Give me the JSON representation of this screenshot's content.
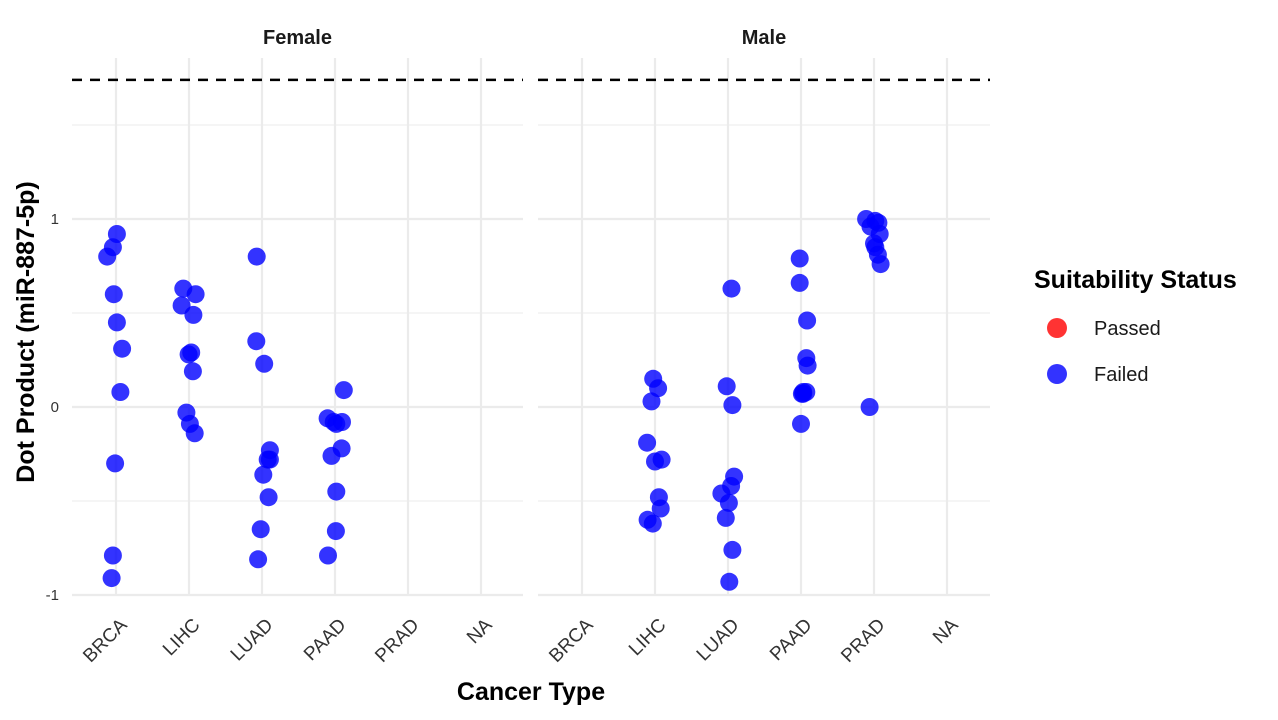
{
  "chart_data": {
    "type": "scatter",
    "title": "",
    "xlabel": "Cancer Type",
    "ylabel": "Dot Product (miR-887-5p)",
    "ylim": [
      -1.05,
      1.75
    ],
    "yticks": [
      -1,
      0,
      1
    ],
    "ytick_labels": [
      "-1",
      "0",
      "1"
    ],
    "reference_line_y": 1.74,
    "grid": true,
    "categories": [
      "BRCA",
      "LIHC",
      "LUAD",
      "PAAD",
      "PRAD",
      "NA"
    ],
    "legend": {
      "title": "Suitability Status",
      "position": "right",
      "entries": [
        {
          "label": "Passed",
          "color": "#ff0000"
        },
        {
          "label": "Failed",
          "color": "#0000ff"
        }
      ]
    },
    "facets": [
      {
        "name": "Female",
        "points": [
          {
            "cat": "BRCA",
            "jitter": -0.2,
            "y": 0.8,
            "status": "Failed"
          },
          {
            "cat": "BRCA",
            "jitter": -0.07,
            "y": 0.85,
            "status": "Failed"
          },
          {
            "cat": "BRCA",
            "jitter": 0.02,
            "y": 0.92,
            "status": "Failed"
          },
          {
            "cat": "BRCA",
            "jitter": -0.05,
            "y": 0.6,
            "status": "Failed"
          },
          {
            "cat": "BRCA",
            "jitter": 0.02,
            "y": 0.45,
            "status": "Failed"
          },
          {
            "cat": "BRCA",
            "jitter": 0.14,
            "y": 0.31,
            "status": "Failed"
          },
          {
            "cat": "BRCA",
            "jitter": 0.1,
            "y": 0.08,
            "status": "Failed"
          },
          {
            "cat": "BRCA",
            "jitter": -0.02,
            "y": -0.3,
            "status": "Failed"
          },
          {
            "cat": "BRCA",
            "jitter": -0.07,
            "y": -0.79,
            "status": "Failed"
          },
          {
            "cat": "BRCA",
            "jitter": -0.1,
            "y": -0.91,
            "status": "Failed"
          },
          {
            "cat": "LIHC",
            "jitter": -0.13,
            "y": 0.63,
            "status": "Failed"
          },
          {
            "cat": "LIHC",
            "jitter": 0.15,
            "y": 0.6,
            "status": "Failed"
          },
          {
            "cat": "LIHC",
            "jitter": -0.17,
            "y": 0.54,
            "status": "Failed"
          },
          {
            "cat": "LIHC",
            "jitter": 0.1,
            "y": 0.49,
            "status": "Failed"
          },
          {
            "cat": "LIHC",
            "jitter": 0.05,
            "y": 0.29,
            "status": "Failed"
          },
          {
            "cat": "LIHC",
            "jitter": -0.01,
            "y": 0.28,
            "status": "Failed"
          },
          {
            "cat": "LIHC",
            "jitter": 0.09,
            "y": 0.19,
            "status": "Failed"
          },
          {
            "cat": "LIHC",
            "jitter": -0.06,
            "y": -0.03,
            "status": "Failed"
          },
          {
            "cat": "LIHC",
            "jitter": 0.02,
            "y": -0.09,
            "status": "Failed"
          },
          {
            "cat": "LIHC",
            "jitter": 0.13,
            "y": -0.14,
            "status": "Failed"
          },
          {
            "cat": "LUAD",
            "jitter": -0.12,
            "y": 0.8,
            "status": "Failed"
          },
          {
            "cat": "LUAD",
            "jitter": -0.13,
            "y": 0.35,
            "status": "Failed"
          },
          {
            "cat": "LUAD",
            "jitter": 0.05,
            "y": 0.23,
            "status": "Failed"
          },
          {
            "cat": "LUAD",
            "jitter": 0.18,
            "y": -0.23,
            "status": "Failed"
          },
          {
            "cat": "LUAD",
            "jitter": 0.13,
            "y": -0.28,
            "status": "Failed"
          },
          {
            "cat": "LUAD",
            "jitter": 0.18,
            "y": -0.28,
            "status": "Failed"
          },
          {
            "cat": "LUAD",
            "jitter": 0.03,
            "y": -0.36,
            "status": "Failed"
          },
          {
            "cat": "LUAD",
            "jitter": 0.15,
            "y": -0.48,
            "status": "Failed"
          },
          {
            "cat": "LUAD",
            "jitter": -0.03,
            "y": -0.65,
            "status": "Failed"
          },
          {
            "cat": "LUAD",
            "jitter": -0.09,
            "y": -0.81,
            "status": "Failed"
          },
          {
            "cat": "PAAD",
            "jitter": 0.2,
            "y": 0.09,
            "status": "Failed"
          },
          {
            "cat": "PAAD",
            "jitter": -0.17,
            "y": -0.06,
            "status": "Failed"
          },
          {
            "cat": "PAAD",
            "jitter": -0.03,
            "y": -0.08,
            "status": "Failed"
          },
          {
            "cat": "PAAD",
            "jitter": 0.03,
            "y": -0.09,
            "status": "Failed"
          },
          {
            "cat": "PAAD",
            "jitter": 0.16,
            "y": -0.08,
            "status": "Failed"
          },
          {
            "cat": "PAAD",
            "jitter": 0.15,
            "y": -0.22,
            "status": "Failed"
          },
          {
            "cat": "PAAD",
            "jitter": -0.08,
            "y": -0.26,
            "status": "Failed"
          },
          {
            "cat": "PAAD",
            "jitter": 0.03,
            "y": -0.45,
            "status": "Failed"
          },
          {
            "cat": "PAAD",
            "jitter": 0.02,
            "y": -0.66,
            "status": "Failed"
          },
          {
            "cat": "PAAD",
            "jitter": -0.16,
            "y": -0.79,
            "status": "Failed"
          }
        ]
      },
      {
        "name": "Male",
        "points": [
          {
            "cat": "LIHC",
            "jitter": -0.04,
            "y": 0.15,
            "status": "Failed"
          },
          {
            "cat": "LIHC",
            "jitter": 0.07,
            "y": 0.1,
            "status": "Failed"
          },
          {
            "cat": "LIHC",
            "jitter": -0.08,
            "y": 0.03,
            "status": "Failed"
          },
          {
            "cat": "LIHC",
            "jitter": -0.18,
            "y": -0.19,
            "status": "Failed"
          },
          {
            "cat": "LIHC",
            "jitter": 0.15,
            "y": -0.28,
            "status": "Failed"
          },
          {
            "cat": "LIHC",
            "jitter": 0.0,
            "y": -0.29,
            "status": "Failed"
          },
          {
            "cat": "LIHC",
            "jitter": 0.09,
            "y": -0.48,
            "status": "Failed"
          },
          {
            "cat": "LIHC",
            "jitter": 0.13,
            "y": -0.54,
            "status": "Failed"
          },
          {
            "cat": "LIHC",
            "jitter": -0.17,
            "y": -0.6,
            "status": "Failed"
          },
          {
            "cat": "LIHC",
            "jitter": -0.05,
            "y": -0.62,
            "status": "Failed"
          },
          {
            "cat": "LUAD",
            "jitter": 0.08,
            "y": 0.63,
            "status": "Failed"
          },
          {
            "cat": "LUAD",
            "jitter": -0.03,
            "y": 0.11,
            "status": "Failed"
          },
          {
            "cat": "LUAD",
            "jitter": 0.1,
            "y": 0.01,
            "status": "Failed"
          },
          {
            "cat": "LUAD",
            "jitter": 0.14,
            "y": -0.37,
            "status": "Failed"
          },
          {
            "cat": "LUAD",
            "jitter": 0.07,
            "y": -0.42,
            "status": "Failed"
          },
          {
            "cat": "LUAD",
            "jitter": -0.15,
            "y": -0.46,
            "status": "Failed"
          },
          {
            "cat": "LUAD",
            "jitter": 0.02,
            "y": -0.51,
            "status": "Failed"
          },
          {
            "cat": "LUAD",
            "jitter": -0.05,
            "y": -0.59,
            "status": "Failed"
          },
          {
            "cat": "LUAD",
            "jitter": 0.1,
            "y": -0.76,
            "status": "Failed"
          },
          {
            "cat": "LUAD",
            "jitter": 0.03,
            "y": -0.93,
            "status": "Failed"
          },
          {
            "cat": "PAAD",
            "jitter": -0.03,
            "y": 0.79,
            "status": "Failed"
          },
          {
            "cat": "PAAD",
            "jitter": -0.03,
            "y": 0.66,
            "status": "Failed"
          },
          {
            "cat": "PAAD",
            "jitter": 0.14,
            "y": 0.46,
            "status": "Failed"
          },
          {
            "cat": "PAAD",
            "jitter": 0.12,
            "y": 0.26,
            "status": "Failed"
          },
          {
            "cat": "PAAD",
            "jitter": 0.15,
            "y": 0.22,
            "status": "Failed"
          },
          {
            "cat": "PAAD",
            "jitter": 0.05,
            "y": 0.08,
            "status": "Failed"
          },
          {
            "cat": "PAAD",
            "jitter": 0.12,
            "y": 0.08,
            "status": "Failed"
          },
          {
            "cat": "PAAD",
            "jitter": 0.02,
            "y": 0.07,
            "status": "Failed"
          },
          {
            "cat": "PAAD",
            "jitter": 0.05,
            "y": 0.07,
            "status": "Failed"
          },
          {
            "cat": "PAAD",
            "jitter": 0.0,
            "y": -0.09,
            "status": "Failed"
          },
          {
            "cat": "PRAD",
            "jitter": -0.18,
            "y": 1.0,
            "status": "Failed"
          },
          {
            "cat": "PRAD",
            "jitter": 0.03,
            "y": 0.99,
            "status": "Failed"
          },
          {
            "cat": "PRAD",
            "jitter": 0.1,
            "y": 0.98,
            "status": "Failed"
          },
          {
            "cat": "PRAD",
            "jitter": -0.08,
            "y": 0.96,
            "status": "Failed"
          },
          {
            "cat": "PRAD",
            "jitter": 0.13,
            "y": 0.92,
            "status": "Failed"
          },
          {
            "cat": "PRAD",
            "jitter": 0.0,
            "y": 0.87,
            "status": "Failed"
          },
          {
            "cat": "PRAD",
            "jitter": 0.03,
            "y": 0.85,
            "status": "Failed"
          },
          {
            "cat": "PRAD",
            "jitter": 0.09,
            "y": 0.81,
            "status": "Failed"
          },
          {
            "cat": "PRAD",
            "jitter": 0.15,
            "y": 0.76,
            "status": "Failed"
          },
          {
            "cat": "PRAD",
            "jitter": -0.1,
            "y": 0.0,
            "status": "Failed"
          }
        ]
      }
    ]
  }
}
